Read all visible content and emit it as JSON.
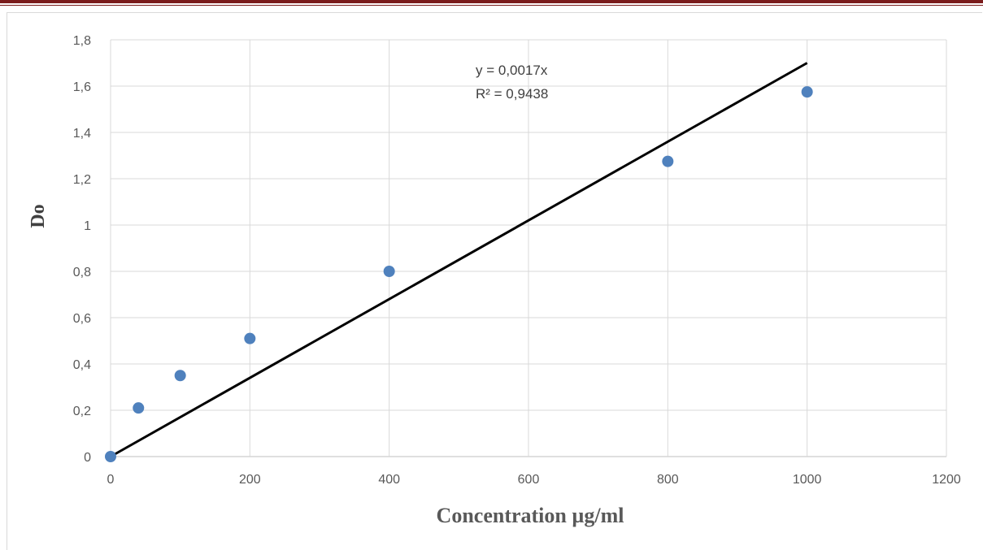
{
  "chart_data": {
    "type": "scatter",
    "xlabel": "Concentration µg/ml",
    "ylabel": "Do",
    "xlim": [
      0,
      1200
    ],
    "ylim": [
      0,
      1.8
    ],
    "x_ticks": [
      "0",
      "200",
      "400",
      "600",
      "800",
      "1000",
      "1200"
    ],
    "y_ticks": [
      "0",
      "0,2",
      "0,4",
      "0,6",
      "0,8",
      "1",
      "1,2",
      "1,4",
      "1,6",
      "1,8"
    ],
    "grid": true,
    "series": [
      {
        "x": [
          0,
          40,
          100,
          200,
          400,
          800,
          1000
        ],
        "y": [
          0,
          0.21,
          0.35,
          0.51,
          0.8,
          1.275,
          1.575
        ],
        "color": "#4f81bd"
      }
    ],
    "trendline": {
      "slope": 0.0017,
      "equation": "y = 0,0017x",
      "r_squared": "R² = 0,9438",
      "color": "#000000"
    }
  }
}
